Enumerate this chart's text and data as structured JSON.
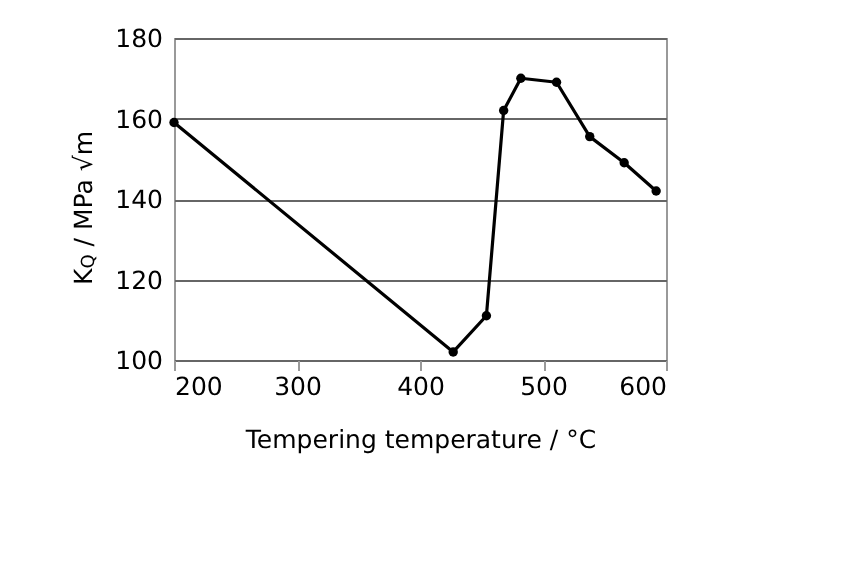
{
  "chart_data": {
    "type": "line",
    "xlabel": "Tempering temperature / °C",
    "ylabel": "K$_{Q}$ / MPa √m",
    "x": [
      200,
      427,
      454,
      468,
      482,
      511,
      538,
      566,
      592
    ],
    "series": [
      {
        "color": "#000000",
        "values": [
          159,
          102,
          111,
          162,
          170,
          169,
          155.5,
          149,
          142
        ]
      }
    ],
    "xlim": [
      200,
      600
    ],
    "xticks": [
      200,
      300,
      400,
      500,
      600
    ],
    "ylim": [
      100,
      180
    ],
    "yticks": [
      100,
      120,
      140,
      160,
      180
    ],
    "grid": "y",
    "marker": "circle",
    "line_style": "solid"
  }
}
